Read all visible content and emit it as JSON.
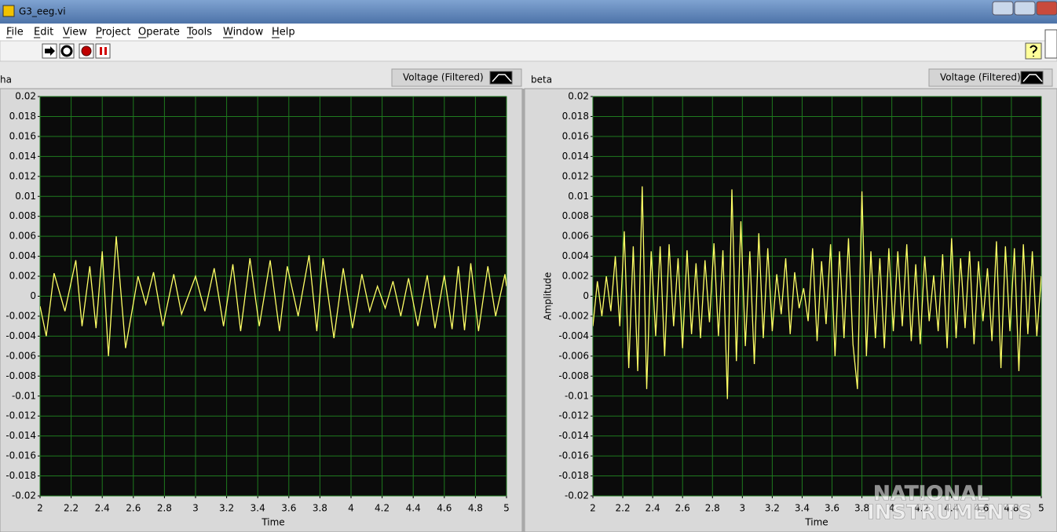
{
  "window": {
    "title": "G3_eeg.vi"
  },
  "menu": [
    "File",
    "Edit",
    "View",
    "Project",
    "Operate",
    "Tools",
    "Window",
    "Help"
  ],
  "watermark": [
    "NATIONAL",
    "INSTRUMENTS"
  ],
  "chart_data": [
    {
      "type": "line",
      "title": "ha",
      "xlabel": "Time",
      "xlim": [
        2,
        5
      ],
      "ylim": [
        -0.02,
        0.02
      ],
      "xticks": [
        2,
        2.2,
        2.4,
        2.6,
        2.8,
        3,
        3.2,
        3.4,
        3.6,
        3.8,
        4,
        4.2,
        4.4,
        4.6,
        4.8,
        5
      ],
      "yticks": [
        0.02,
        0.018,
        0.016,
        0.014,
        0.012,
        0.01,
        0.008,
        0.006,
        0.004,
        0.002,
        0,
        -0.002,
        -0.004,
        -0.006,
        -0.008,
        -0.01,
        -0.012,
        -0.014,
        -0.016,
        -0.018,
        -0.02
      ],
      "grid": true,
      "x": [
        2.0,
        2.04,
        2.09,
        2.16,
        2.23,
        2.27,
        2.32,
        2.36,
        2.4,
        2.44,
        2.49,
        2.55,
        2.63,
        2.68,
        2.73,
        2.79,
        2.86,
        2.91,
        3.0,
        3.06,
        3.12,
        3.18,
        3.24,
        3.29,
        3.35,
        3.41,
        3.48,
        3.54,
        3.59,
        3.66,
        3.73,
        3.78,
        3.82,
        3.89,
        3.95,
        4.01,
        4.07,
        4.12,
        4.17,
        4.22,
        4.27,
        4.32,
        4.37,
        4.43,
        4.49,
        4.54,
        4.6,
        4.65,
        4.69,
        4.73,
        4.77,
        4.82,
        4.88,
        4.93,
        4.99,
        5.0
      ],
      "series": [
        {
          "name": "Voltage (Filtered)",
          "color": "#ffff66",
          "values": [
            -0.001,
            -0.004,
            0.0023,
            -0.0015,
            0.0036,
            -0.003,
            0.003,
            -0.0032,
            0.0045,
            -0.006,
            0.006,
            -0.0052,
            0.002,
            -0.0008,
            0.0024,
            -0.003,
            0.0022,
            -0.0018,
            0.002,
            -0.0015,
            0.0028,
            -0.003,
            0.0032,
            -0.0035,
            0.0038,
            -0.003,
            0.0036,
            -0.0035,
            0.003,
            -0.002,
            0.0041,
            -0.0035,
            0.0038,
            -0.0042,
            0.0028,
            -0.0032,
            0.0022,
            -0.0015,
            0.001,
            -0.0012,
            0.0015,
            -0.002,
            0.0018,
            -0.003,
            0.0021,
            -0.0032,
            0.0021,
            -0.0033,
            0.003,
            -0.0034,
            0.0033,
            -0.0035,
            0.003,
            -0.002,
            0.0022,
            0.001
          ]
        }
      ]
    },
    {
      "type": "line",
      "title": "beta",
      "xlabel": "Time",
      "ylabel": "Amplitude",
      "xlim": [
        2,
        5
      ],
      "ylim": [
        -0.02,
        0.02
      ],
      "xticks": [
        2,
        2.2,
        2.4,
        2.6,
        2.8,
        3,
        3.2,
        3.4,
        3.6,
        3.8,
        4,
        4.2,
        4.4,
        4.6,
        4.8,
        5
      ],
      "yticks": [
        0.02,
        0.018,
        0.016,
        0.014,
        0.012,
        0.01,
        0.008,
        0.006,
        0.004,
        0.002,
        0,
        -0.002,
        -0.004,
        -0.006,
        -0.008,
        -0.01,
        -0.012,
        -0.014,
        -0.016,
        -0.018,
        -0.02
      ],
      "grid": true,
      "x": [
        2.0,
        2.03,
        2.06,
        2.09,
        2.12,
        2.15,
        2.18,
        2.21,
        2.24,
        2.27,
        2.3,
        2.33,
        2.36,
        2.39,
        2.42,
        2.45,
        2.48,
        2.51,
        2.54,
        2.57,
        2.6,
        2.63,
        2.66,
        2.69,
        2.72,
        2.75,
        2.78,
        2.81,
        2.84,
        2.87,
        2.9,
        2.93,
        2.96,
        2.99,
        3.02,
        3.05,
        3.08,
        3.11,
        3.14,
        3.17,
        3.2,
        3.23,
        3.26,
        3.29,
        3.32,
        3.35,
        3.38,
        3.41,
        3.44,
        3.47,
        3.5,
        3.53,
        3.56,
        3.59,
        3.62,
        3.65,
        3.68,
        3.71,
        3.74,
        3.77,
        3.8,
        3.83,
        3.86,
        3.89,
        3.92,
        3.95,
        3.98,
        4.01,
        4.04,
        4.07,
        4.1,
        4.13,
        4.16,
        4.19,
        4.22,
        4.25,
        4.28,
        4.31,
        4.34,
        4.37,
        4.4,
        4.43,
        4.46,
        4.49,
        4.52,
        4.55,
        4.58,
        4.61,
        4.64,
        4.67,
        4.7,
        4.73,
        4.76,
        4.79,
        4.82,
        4.85,
        4.88,
        4.91,
        4.94,
        4.97,
        5.0
      ],
      "series": [
        {
          "name": "Voltage (Filtered)",
          "color": "#ffff66",
          "values": [
            -0.003,
            0.0015,
            -0.002,
            0.002,
            -0.0015,
            0.004,
            -0.003,
            0.0065,
            -0.0072,
            0.005,
            -0.0075,
            0.011,
            -0.0093,
            0.0045,
            -0.004,
            0.005,
            -0.006,
            0.0052,
            -0.003,
            0.0038,
            -0.0052,
            0.0046,
            -0.0038,
            0.0033,
            -0.0042,
            0.0036,
            -0.0026,
            0.0053,
            -0.004,
            0.0046,
            -0.0103,
            0.0107,
            -0.0065,
            0.0075,
            -0.005,
            0.0045,
            -0.0068,
            0.0063,
            -0.0042,
            0.0048,
            -0.0035,
            0.0022,
            -0.0018,
            0.0038,
            -0.0038,
            0.0024,
            -0.0012,
            0.0008,
            -0.0025,
            0.0048,
            -0.0045,
            0.0035,
            -0.0028,
            0.0052,
            -0.006,
            0.0045,
            -0.0042,
            0.0058,
            -0.0048,
            -0.0093,
            0.0105,
            -0.006,
            0.0045,
            -0.0042,
            0.0038,
            -0.0052,
            0.0048,
            -0.0035,
            0.0045,
            -0.003,
            0.0052,
            -0.0045,
            0.0032,
            -0.0048,
            0.004,
            -0.0025,
            0.0021,
            -0.0035,
            0.0042,
            -0.0052,
            0.0058,
            -0.0042,
            0.0038,
            -0.0032,
            0.0045,
            -0.0048,
            0.0035,
            -0.0025,
            0.0028,
            -0.0045,
            0.0055,
            -0.0072,
            0.005,
            -0.0035,
            0.0048,
            -0.0075,
            0.0052,
            -0.0038,
            0.0045,
            -0.004,
            0.002
          ]
        }
      ]
    }
  ]
}
